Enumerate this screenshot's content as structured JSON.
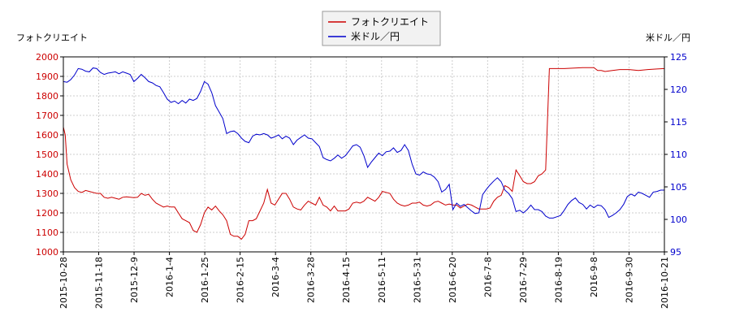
{
  "chart_data": {
    "type": "line",
    "left_axis_title": "フォトクリエイト",
    "right_axis_title": "米ドル／円",
    "x_tick_labels": [
      "2015-10-28",
      "2015-11-18",
      "2015-12-9",
      "2016-1-4",
      "2016-1-25",
      "2016-2-15",
      "2016-3-4",
      "2016-3-28",
      "2016-4-15",
      "2016-5-11",
      "2016-5-31",
      "2016-6-20",
      "2016-7-8",
      "2016-7-29",
      "2016-8-19",
      "2016-9-8",
      "2016-9-30",
      "2016-10-21"
    ],
    "y_left": {
      "min": 1000,
      "max": 2000,
      "ticks": [
        1000,
        1100,
        1200,
        1300,
        1400,
        1500,
        1600,
        1700,
        1800,
        1900,
        2000
      ]
    },
    "y_right": {
      "min": 95,
      "max": 125,
      "ticks": [
        95,
        100,
        105,
        110,
        115,
        120,
        125
      ]
    },
    "grid": true,
    "legend_position": "top-center",
    "series": [
      {
        "name": "フォトクリエイト",
        "axis": "left",
        "color": "#cc0000",
        "values": [
          [
            0,
            1640
          ],
          [
            1,
            1600
          ],
          [
            2,
            1450
          ],
          [
            4,
            1370
          ],
          [
            6,
            1330
          ],
          [
            8,
            1310
          ],
          [
            10,
            1305
          ],
          [
            12,
            1315
          ],
          [
            14,
            1310
          ],
          [
            16,
            1305
          ],
          [
            18,
            1300
          ],
          [
            20,
            1300
          ],
          [
            22,
            1280
          ],
          [
            24,
            1275
          ],
          [
            26,
            1280
          ],
          [
            28,
            1275
          ],
          [
            30,
            1270
          ],
          [
            32,
            1280
          ],
          [
            34,
            1282
          ],
          [
            36,
            1280
          ],
          [
            38,
            1278
          ],
          [
            40,
            1280
          ],
          [
            42,
            1300
          ],
          [
            44,
            1290
          ],
          [
            46,
            1295
          ],
          [
            48,
            1270
          ],
          [
            50,
            1250
          ],
          [
            52,
            1240
          ],
          [
            54,
            1230
          ],
          [
            56,
            1235
          ],
          [
            58,
            1230
          ],
          [
            60,
            1230
          ],
          [
            62,
            1200
          ],
          [
            64,
            1170
          ],
          [
            66,
            1160
          ],
          [
            68,
            1150
          ],
          [
            70,
            1110
          ],
          [
            72,
            1100
          ],
          [
            74,
            1140
          ],
          [
            76,
            1200
          ],
          [
            78,
            1230
          ],
          [
            80,
            1215
          ],
          [
            82,
            1235
          ],
          [
            84,
            1210
          ],
          [
            86,
            1190
          ],
          [
            88,
            1160
          ],
          [
            90,
            1090
          ],
          [
            92,
            1080
          ],
          [
            94,
            1080
          ],
          [
            96,
            1065
          ],
          [
            98,
            1090
          ],
          [
            100,
            1160
          ],
          [
            102,
            1160
          ],
          [
            104,
            1170
          ],
          [
            106,
            1210
          ],
          [
            108,
            1250
          ],
          [
            110,
            1320
          ],
          [
            112,
            1250
          ],
          [
            114,
            1240
          ],
          [
            116,
            1270
          ],
          [
            118,
            1300
          ],
          [
            120,
            1300
          ],
          [
            122,
            1270
          ],
          [
            124,
            1230
          ],
          [
            126,
            1220
          ],
          [
            128,
            1215
          ],
          [
            130,
            1240
          ],
          [
            132,
            1260
          ],
          [
            134,
            1250
          ],
          [
            136,
            1240
          ],
          [
            138,
            1280
          ],
          [
            140,
            1240
          ],
          [
            142,
            1230
          ],
          [
            144,
            1210
          ],
          [
            146,
            1235
          ],
          [
            148,
            1210
          ],
          [
            150,
            1210
          ],
          [
            152,
            1210
          ],
          [
            154,
            1220
          ],
          [
            156,
            1250
          ],
          [
            158,
            1255
          ],
          [
            160,
            1250
          ],
          [
            162,
            1260
          ],
          [
            164,
            1280
          ],
          [
            166,
            1270
          ],
          [
            168,
            1260
          ],
          [
            170,
            1280
          ],
          [
            172,
            1310
          ],
          [
            174,
            1305
          ],
          [
            176,
            1300
          ],
          [
            178,
            1270
          ],
          [
            180,
            1250
          ],
          [
            182,
            1240
          ],
          [
            184,
            1235
          ],
          [
            186,
            1240
          ],
          [
            188,
            1250
          ],
          [
            190,
            1250
          ],
          [
            192,
            1255
          ],
          [
            194,
            1240
          ],
          [
            196,
            1235
          ],
          [
            198,
            1240
          ],
          [
            200,
            1255
          ],
          [
            202,
            1260
          ],
          [
            204,
            1250
          ],
          [
            206,
            1240
          ],
          [
            208,
            1245
          ],
          [
            210,
            1240
          ],
          [
            212,
            1240
          ],
          [
            214,
            1225
          ],
          [
            216,
            1235
          ],
          [
            218,
            1245
          ],
          [
            220,
            1240
          ],
          [
            222,
            1230
          ],
          [
            224,
            1220
          ],
          [
            226,
            1220
          ],
          [
            228,
            1220
          ],
          [
            230,
            1225
          ],
          [
            232,
            1260
          ],
          [
            234,
            1280
          ],
          [
            236,
            1290
          ],
          [
            238,
            1340
          ],
          [
            240,
            1330
          ],
          [
            242,
            1310
          ],
          [
            244,
            1420
          ],
          [
            246,
            1390
          ],
          [
            248,
            1360
          ],
          [
            250,
            1350
          ],
          [
            252,
            1350
          ],
          [
            254,
            1360
          ],
          [
            256,
            1390
          ],
          [
            258,
            1400
          ],
          [
            260,
            1420
          ],
          [
            262,
            1940
          ],
          [
            264,
            1940
          ],
          [
            270,
            1940
          ],
          [
            280,
            1945
          ],
          [
            286,
            1945
          ],
          [
            288,
            1930
          ],
          [
            290,
            1930
          ],
          [
            292,
            1925
          ],
          [
            296,
            1930
          ],
          [
            300,
            1935
          ],
          [
            305,
            1935
          ],
          [
            310,
            1930
          ],
          [
            315,
            1935
          ],
          [
            320,
            1938
          ],
          [
            324,
            1940
          ]
        ]
      },
      {
        "name": "米ドル／円",
        "axis": "right",
        "color": "#0000cc",
        "values": [
          [
            0,
            121.2
          ],
          [
            2,
            121.1
          ],
          [
            4,
            121.5
          ],
          [
            6,
            122.2
          ],
          [
            8,
            123.2
          ],
          [
            10,
            123.1
          ],
          [
            12,
            122.8
          ],
          [
            14,
            122.7
          ],
          [
            16,
            123.3
          ],
          [
            18,
            123.2
          ],
          [
            20,
            122.6
          ],
          [
            22,
            122.3
          ],
          [
            24,
            122.5
          ],
          [
            26,
            122.6
          ],
          [
            28,
            122.7
          ],
          [
            30,
            122.4
          ],
          [
            32,
            122.7
          ],
          [
            34,
            122.5
          ],
          [
            36,
            122.3
          ],
          [
            38,
            121.2
          ],
          [
            40,
            121.7
          ],
          [
            42,
            122.3
          ],
          [
            44,
            121.8
          ],
          [
            46,
            121.2
          ],
          [
            48,
            121.0
          ],
          [
            50,
            120.6
          ],
          [
            52,
            120.4
          ],
          [
            54,
            119.5
          ],
          [
            56,
            118.5
          ],
          [
            58,
            118.0
          ],
          [
            60,
            118.2
          ],
          [
            62,
            117.8
          ],
          [
            64,
            118.3
          ],
          [
            66,
            117.9
          ],
          [
            68,
            118.5
          ],
          [
            70,
            118.3
          ],
          [
            72,
            118.6
          ],
          [
            74,
            119.7
          ],
          [
            76,
            121.2
          ],
          [
            78,
            120.8
          ],
          [
            80,
            119.5
          ],
          [
            82,
            117.5
          ],
          [
            84,
            116.5
          ],
          [
            86,
            115.5
          ],
          [
            88,
            113.2
          ],
          [
            90,
            113.5
          ],
          [
            92,
            113.6
          ],
          [
            94,
            113.2
          ],
          [
            96,
            112.5
          ],
          [
            98,
            112.0
          ],
          [
            100,
            111.8
          ],
          [
            102,
            112.8
          ],
          [
            104,
            113.1
          ],
          [
            106,
            113.0
          ],
          [
            108,
            113.2
          ],
          [
            110,
            113.0
          ],
          [
            112,
            112.5
          ],
          [
            114,
            112.7
          ],
          [
            116,
            113.0
          ],
          [
            118,
            112.4
          ],
          [
            120,
            112.8
          ],
          [
            122,
            112.5
          ],
          [
            124,
            111.5
          ],
          [
            126,
            112.2
          ],
          [
            128,
            112.6
          ],
          [
            130,
            113.0
          ],
          [
            132,
            112.5
          ],
          [
            134,
            112.4
          ],
          [
            136,
            111.8
          ],
          [
            138,
            111.2
          ],
          [
            140,
            109.5
          ],
          [
            142,
            109.2
          ],
          [
            144,
            109.0
          ],
          [
            146,
            109.4
          ],
          [
            148,
            109.9
          ],
          [
            150,
            109.4
          ],
          [
            152,
            109.8
          ],
          [
            154,
            110.5
          ],
          [
            156,
            111.3
          ],
          [
            158,
            111.5
          ],
          [
            160,
            111.1
          ],
          [
            162,
            109.8
          ],
          [
            164,
            108.0
          ],
          [
            166,
            108.8
          ],
          [
            168,
            109.5
          ],
          [
            170,
            110.2
          ],
          [
            172,
            109.8
          ],
          [
            174,
            110.4
          ],
          [
            176,
            110.5
          ],
          [
            178,
            111.0
          ],
          [
            180,
            110.3
          ],
          [
            182,
            110.6
          ],
          [
            184,
            111.5
          ],
          [
            186,
            110.6
          ],
          [
            188,
            108.5
          ],
          [
            190,
            107.0
          ],
          [
            192,
            106.8
          ],
          [
            194,
            107.3
          ],
          [
            196,
            107.0
          ],
          [
            198,
            106.9
          ],
          [
            200,
            106.5
          ],
          [
            202,
            105.8
          ],
          [
            204,
            104.2
          ],
          [
            206,
            104.6
          ],
          [
            208,
            105.4
          ],
          [
            210,
            101.5
          ],
          [
            212,
            102.5
          ],
          [
            214,
            102.0
          ],
          [
            216,
            102.3
          ],
          [
            218,
            101.8
          ],
          [
            220,
            101.3
          ],
          [
            222,
            100.9
          ],
          [
            224,
            101.0
          ],
          [
            226,
            103.8
          ],
          [
            228,
            104.6
          ],
          [
            230,
            105.3
          ],
          [
            232,
            105.9
          ],
          [
            234,
            106.4
          ],
          [
            236,
            105.8
          ],
          [
            238,
            104.5
          ],
          [
            240,
            104.0
          ],
          [
            242,
            103.2
          ],
          [
            244,
            101.2
          ],
          [
            246,
            101.4
          ],
          [
            248,
            101.0
          ],
          [
            250,
            101.5
          ],
          [
            252,
            102.2
          ],
          [
            254,
            101.5
          ],
          [
            256,
            101.5
          ],
          [
            258,
            101.2
          ],
          [
            260,
            100.5
          ],
          [
            262,
            100.2
          ],
          [
            264,
            100.2
          ],
          [
            266,
            100.4
          ],
          [
            268,
            100.6
          ],
          [
            270,
            101.4
          ],
          [
            272,
            102.3
          ],
          [
            274,
            102.9
          ],
          [
            276,
            103.3
          ],
          [
            278,
            102.6
          ],
          [
            280,
            102.3
          ],
          [
            282,
            101.6
          ],
          [
            284,
            102.2
          ],
          [
            286,
            101.8
          ],
          [
            288,
            102.2
          ],
          [
            290,
            102.1
          ],
          [
            292,
            101.5
          ],
          [
            294,
            100.3
          ],
          [
            296,
            100.6
          ],
          [
            298,
            101.0
          ],
          [
            300,
            101.5
          ],
          [
            302,
            102.3
          ],
          [
            304,
            103.5
          ],
          [
            306,
            103.9
          ],
          [
            308,
            103.6
          ],
          [
            310,
            104.2
          ],
          [
            312,
            104.0
          ],
          [
            314,
            103.7
          ],
          [
            316,
            103.4
          ],
          [
            318,
            104.2
          ],
          [
            320,
            104.3
          ],
          [
            322,
            104.5
          ],
          [
            324,
            104.5
          ]
        ]
      }
    ]
  }
}
